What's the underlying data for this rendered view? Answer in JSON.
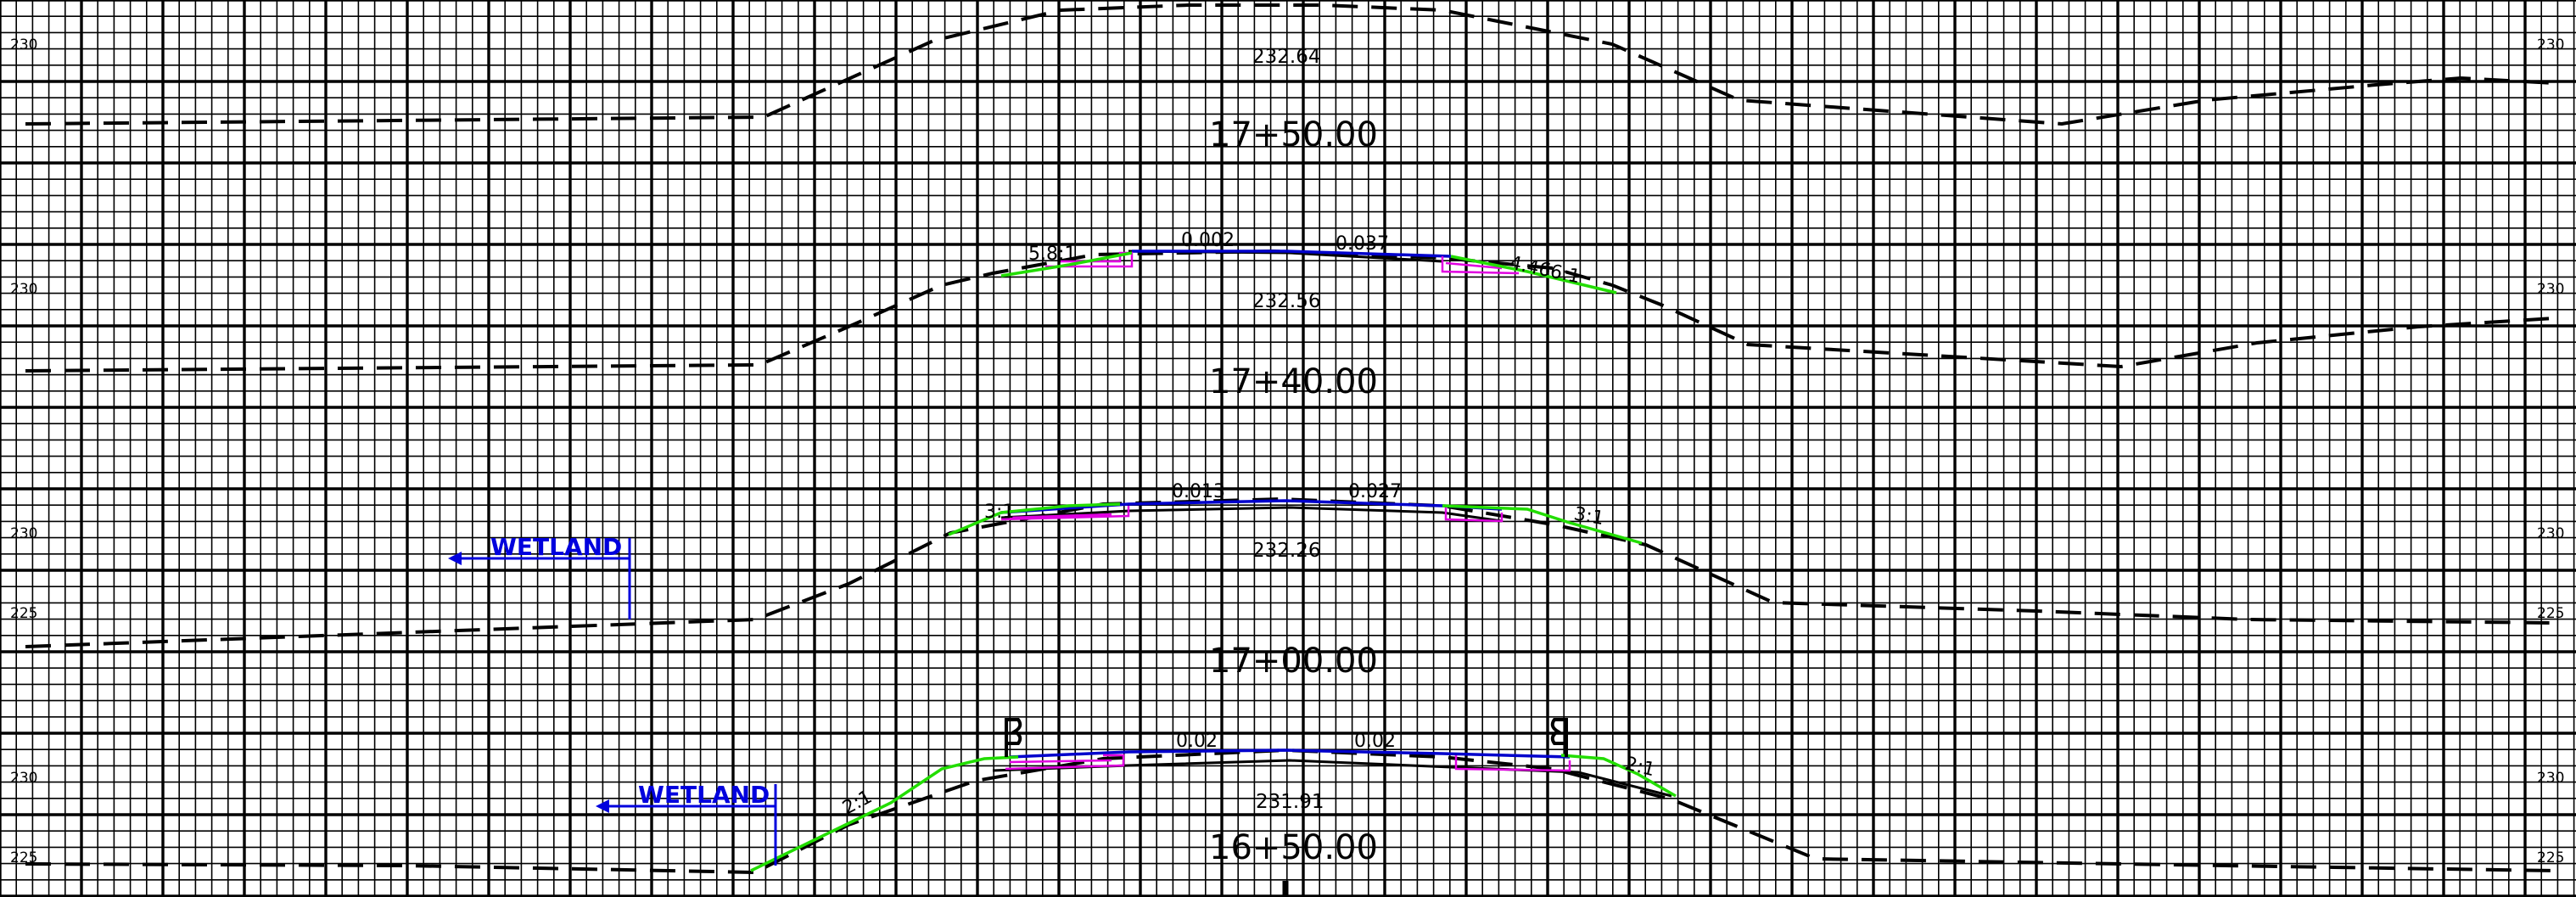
{
  "grid": {
    "left_labels": [
      "230",
      "230",
      "230",
      "225",
      "230",
      "225"
    ],
    "right_labels": [
      "230",
      "230",
      "230",
      "225",
      "230",
      "225"
    ]
  },
  "sections": [
    {
      "station": "17+50.00",
      "elevation": "232.64",
      "slope_left": "",
      "slope_right": "",
      "cross_slope_left": "",
      "cross_slope_right": ""
    },
    {
      "station": "17+40.00",
      "elevation": "232.56",
      "slope_left": "5.8:1",
      "slope_right": "4.466:1",
      "cross_slope_left": "0.002",
      "cross_slope_right": "0.037"
    },
    {
      "station": "17+00.00",
      "elevation": "232.26",
      "slope_left": "3:1",
      "slope_right": "3:1",
      "cross_slope_left": "0.013",
      "cross_slope_right": "0.027"
    },
    {
      "station": "16+50.00",
      "elevation": "231.91",
      "slope_left": "2:1",
      "slope_right": "2:1",
      "cross_slope_left": "0.02",
      "cross_slope_right": "0.02"
    }
  ],
  "wetland_labels": [
    "WETLAND",
    "WETLAND"
  ],
  "colors": {
    "grid": "#000000",
    "pavement": "#0000cc",
    "slope": "#22dd00",
    "shoulder": "#e000e0",
    "wetland": "#0000dd"
  }
}
